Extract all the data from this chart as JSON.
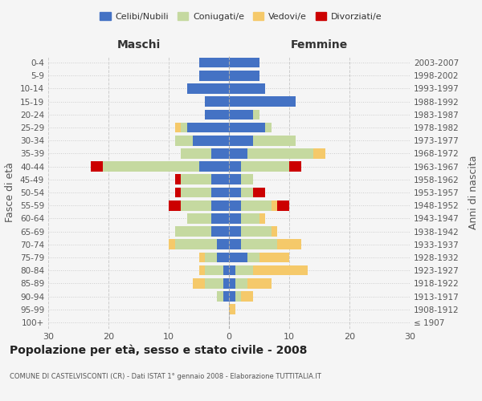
{
  "age_groups": [
    "100+",
    "95-99",
    "90-94",
    "85-89",
    "80-84",
    "75-79",
    "70-74",
    "65-69",
    "60-64",
    "55-59",
    "50-54",
    "45-49",
    "40-44",
    "35-39",
    "30-34",
    "25-29",
    "20-24",
    "15-19",
    "10-14",
    "5-9",
    "0-4"
  ],
  "birth_years": [
    "≤ 1907",
    "1908-1912",
    "1913-1917",
    "1918-1922",
    "1923-1927",
    "1928-1932",
    "1933-1937",
    "1938-1942",
    "1943-1947",
    "1948-1952",
    "1953-1957",
    "1958-1962",
    "1963-1967",
    "1968-1972",
    "1973-1977",
    "1978-1982",
    "1983-1987",
    "1988-1992",
    "1993-1997",
    "1998-2002",
    "2003-2007"
  ],
  "male_celibe": [
    0,
    0,
    1,
    1,
    1,
    2,
    2,
    3,
    3,
    3,
    3,
    3,
    5,
    3,
    6,
    7,
    4,
    4,
    7,
    5,
    5
  ],
  "male_coniugato": [
    0,
    0,
    1,
    3,
    3,
    2,
    7,
    6,
    4,
    5,
    5,
    5,
    16,
    5,
    3,
    1,
    0,
    0,
    0,
    0,
    0
  ],
  "male_vedovo": [
    0,
    0,
    0,
    2,
    1,
    1,
    1,
    0,
    0,
    0,
    0,
    0,
    0,
    0,
    0,
    1,
    0,
    0,
    0,
    0,
    0
  ],
  "male_divorziato": [
    0,
    0,
    0,
    0,
    0,
    0,
    0,
    0,
    0,
    2,
    1,
    1,
    2,
    0,
    0,
    0,
    0,
    0,
    0,
    0,
    0
  ],
  "female_celibe": [
    0,
    0,
    1,
    1,
    1,
    3,
    2,
    2,
    2,
    2,
    2,
    2,
    2,
    3,
    4,
    6,
    4,
    11,
    6,
    5,
    5
  ],
  "female_coniugato": [
    0,
    0,
    1,
    2,
    3,
    2,
    6,
    5,
    3,
    5,
    2,
    2,
    8,
    11,
    7,
    1,
    1,
    0,
    0,
    0,
    0
  ],
  "female_vedovo": [
    0,
    1,
    2,
    4,
    9,
    5,
    4,
    1,
    1,
    1,
    0,
    0,
    0,
    2,
    0,
    0,
    0,
    0,
    0,
    0,
    0
  ],
  "female_divorziata": [
    0,
    0,
    0,
    0,
    0,
    0,
    0,
    0,
    0,
    2,
    2,
    0,
    2,
    0,
    0,
    0,
    0,
    0,
    0,
    0,
    0
  ],
  "colors": {
    "celibe": "#4472c4",
    "coniugato": "#c5d9a0",
    "vedovo": "#f5c96a",
    "divorziato": "#cc0000"
  },
  "xlim": 30,
  "title": "Popolazione per età, sesso e stato civile - 2008",
  "subtitle": "COMUNE DI CASTELVISCONTI (CR) - Dati ISTAT 1° gennaio 2008 - Elaborazione TUTTITALIA.IT",
  "ylabel_left": "Fasce di età",
  "ylabel_right": "Anni di nascita",
  "xlabel_male": "Maschi",
  "xlabel_female": "Femmine",
  "bg_color": "#f5f5f5",
  "grid_color": "#cccccc"
}
